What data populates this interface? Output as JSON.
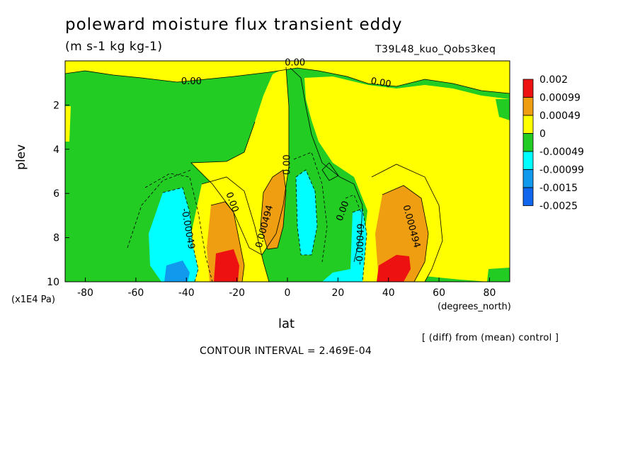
{
  "header": {
    "title": "poleward moisture flux transient eddy",
    "units": "(m s-1 kg kg-1)",
    "run_name": "T39L48_kuo_Qobs3keq"
  },
  "footer": {
    "note": "[ (diff) from (mean) control ]",
    "contour_interval": "CONTOUR INTERVAL = 2.469E-04"
  },
  "colors": {
    "red": "#ee1111",
    "orange": "#ee9e10",
    "yellow": "#ffff00",
    "green": "#22cc22",
    "cyan": "#00ffff",
    "mid_blue": "#1199ee",
    "dark_blue": "#1166ee"
  },
  "chart_data": {
    "type": "contour",
    "title": "poleward moisture flux transient eddy",
    "xlabel": "lat",
    "xunit": "(degrees_north)",
    "ylabel": "plev",
    "yunit": "(x1E4 Pa)",
    "xlim": [
      -88,
      88
    ],
    "ylim": [
      10,
      0
    ],
    "xticks": [
      -80,
      -60,
      -40,
      -20,
      0,
      20,
      40,
      60,
      80
    ],
    "yticks": [
      2,
      4,
      6,
      8,
      10
    ],
    "x_tick_labels": [
      "-80",
      "-60",
      "-40",
      "-20",
      "0",
      "20",
      "40",
      "60",
      "80"
    ],
    "y_tick_labels": [
      "2",
      "4",
      "6",
      "8",
      "10"
    ],
    "colorbar": {
      "levels": [
        "0.002",
        "0.00099",
        "0.00049",
        "0",
        "-0.00049",
        "-0.00099",
        "-0.0015",
        "-0.0025"
      ],
      "colors": [
        "#ee1111",
        "#ee9e10",
        "#ffff00",
        "#22cc22",
        "#00ffff",
        "#1199ee",
        "#1166ee"
      ]
    },
    "contour_labels": [
      {
        "text": "0.00",
        "x": 3,
        "y": 0.1,
        "angle": 0
      },
      {
        "text": "0.00",
        "x": -38,
        "y": 0.95,
        "angle": 0
      },
      {
        "text": "0.00",
        "x": 37,
        "y": 1.0,
        "angle": 10
      },
      {
        "text": "0.00",
        "x": 0,
        "y": 4.7,
        "angle": -90
      },
      {
        "text": "0.00",
        "x": -22,
        "y": 6.4,
        "angle": 70
      },
      {
        "text": "0.00",
        "x": 22,
        "y": 6.8,
        "angle": -70
      },
      {
        "text": "0.000494",
        "x": -9,
        "y": 7.5,
        "angle": -75
      },
      {
        "text": "0.000494",
        "x": 49,
        "y": 7.5,
        "angle": 75
      },
      {
        "text": "-0.00049",
        "x": -39.5,
        "y": 7.6,
        "angle": 80
      },
      {
        "text": "-0.00049",
        "x": 29,
        "y": 8.3,
        "angle": -88
      }
    ],
    "regions": [
      {
        "level": "0 to 0.00049",
        "lat": [
          -10,
          0
        ],
        "plev": [
          0,
          5.5
        ]
      },
      {
        "level": "0 to 0.00049",
        "lat": [
          10,
          88
        ],
        "plev": [
          0,
          6
        ]
      },
      {
        "level": "0.00049 to 0.00099",
        "lat": [
          -30,
          -18
        ],
        "plev": [
          6.5,
          10
        ]
      },
      {
        "level": "0.00049 to 0.00099",
        "lat": [
          -8,
          0
        ],
        "plev": [
          5,
          9
        ]
      },
      {
        "level": "0.00049 to 0.00099",
        "lat": [
          36,
          54
        ],
        "plev": [
          5.5,
          10
        ]
      },
      {
        "level": "0.00099 to 0.002",
        "lat": [
          -30,
          -20
        ],
        "plev": [
          9,
          10
        ]
      },
      {
        "level": "0.00099 to 0.002",
        "lat": [
          36,
          48
        ],
        "plev": [
          8.5,
          10
        ]
      },
      {
        "level": "-0.00049 to -0.00099",
        "lat": [
          -50,
          -38
        ],
        "plev": [
          6,
          9.5
        ]
      },
      {
        "level": "-0.00049 to -0.00099",
        "lat": [
          4,
          14
        ],
        "plev": [
          5,
          8.8
        ]
      },
      {
        "level": "-0.00049 to -0.00099",
        "lat": [
          24,
          30
        ],
        "plev": [
          7,
          10
        ]
      },
      {
        "level": "-0.00099 to -0.0015",
        "lat": [
          -46,
          -38
        ],
        "plev": [
          9,
          10
        ]
      }
    ]
  }
}
